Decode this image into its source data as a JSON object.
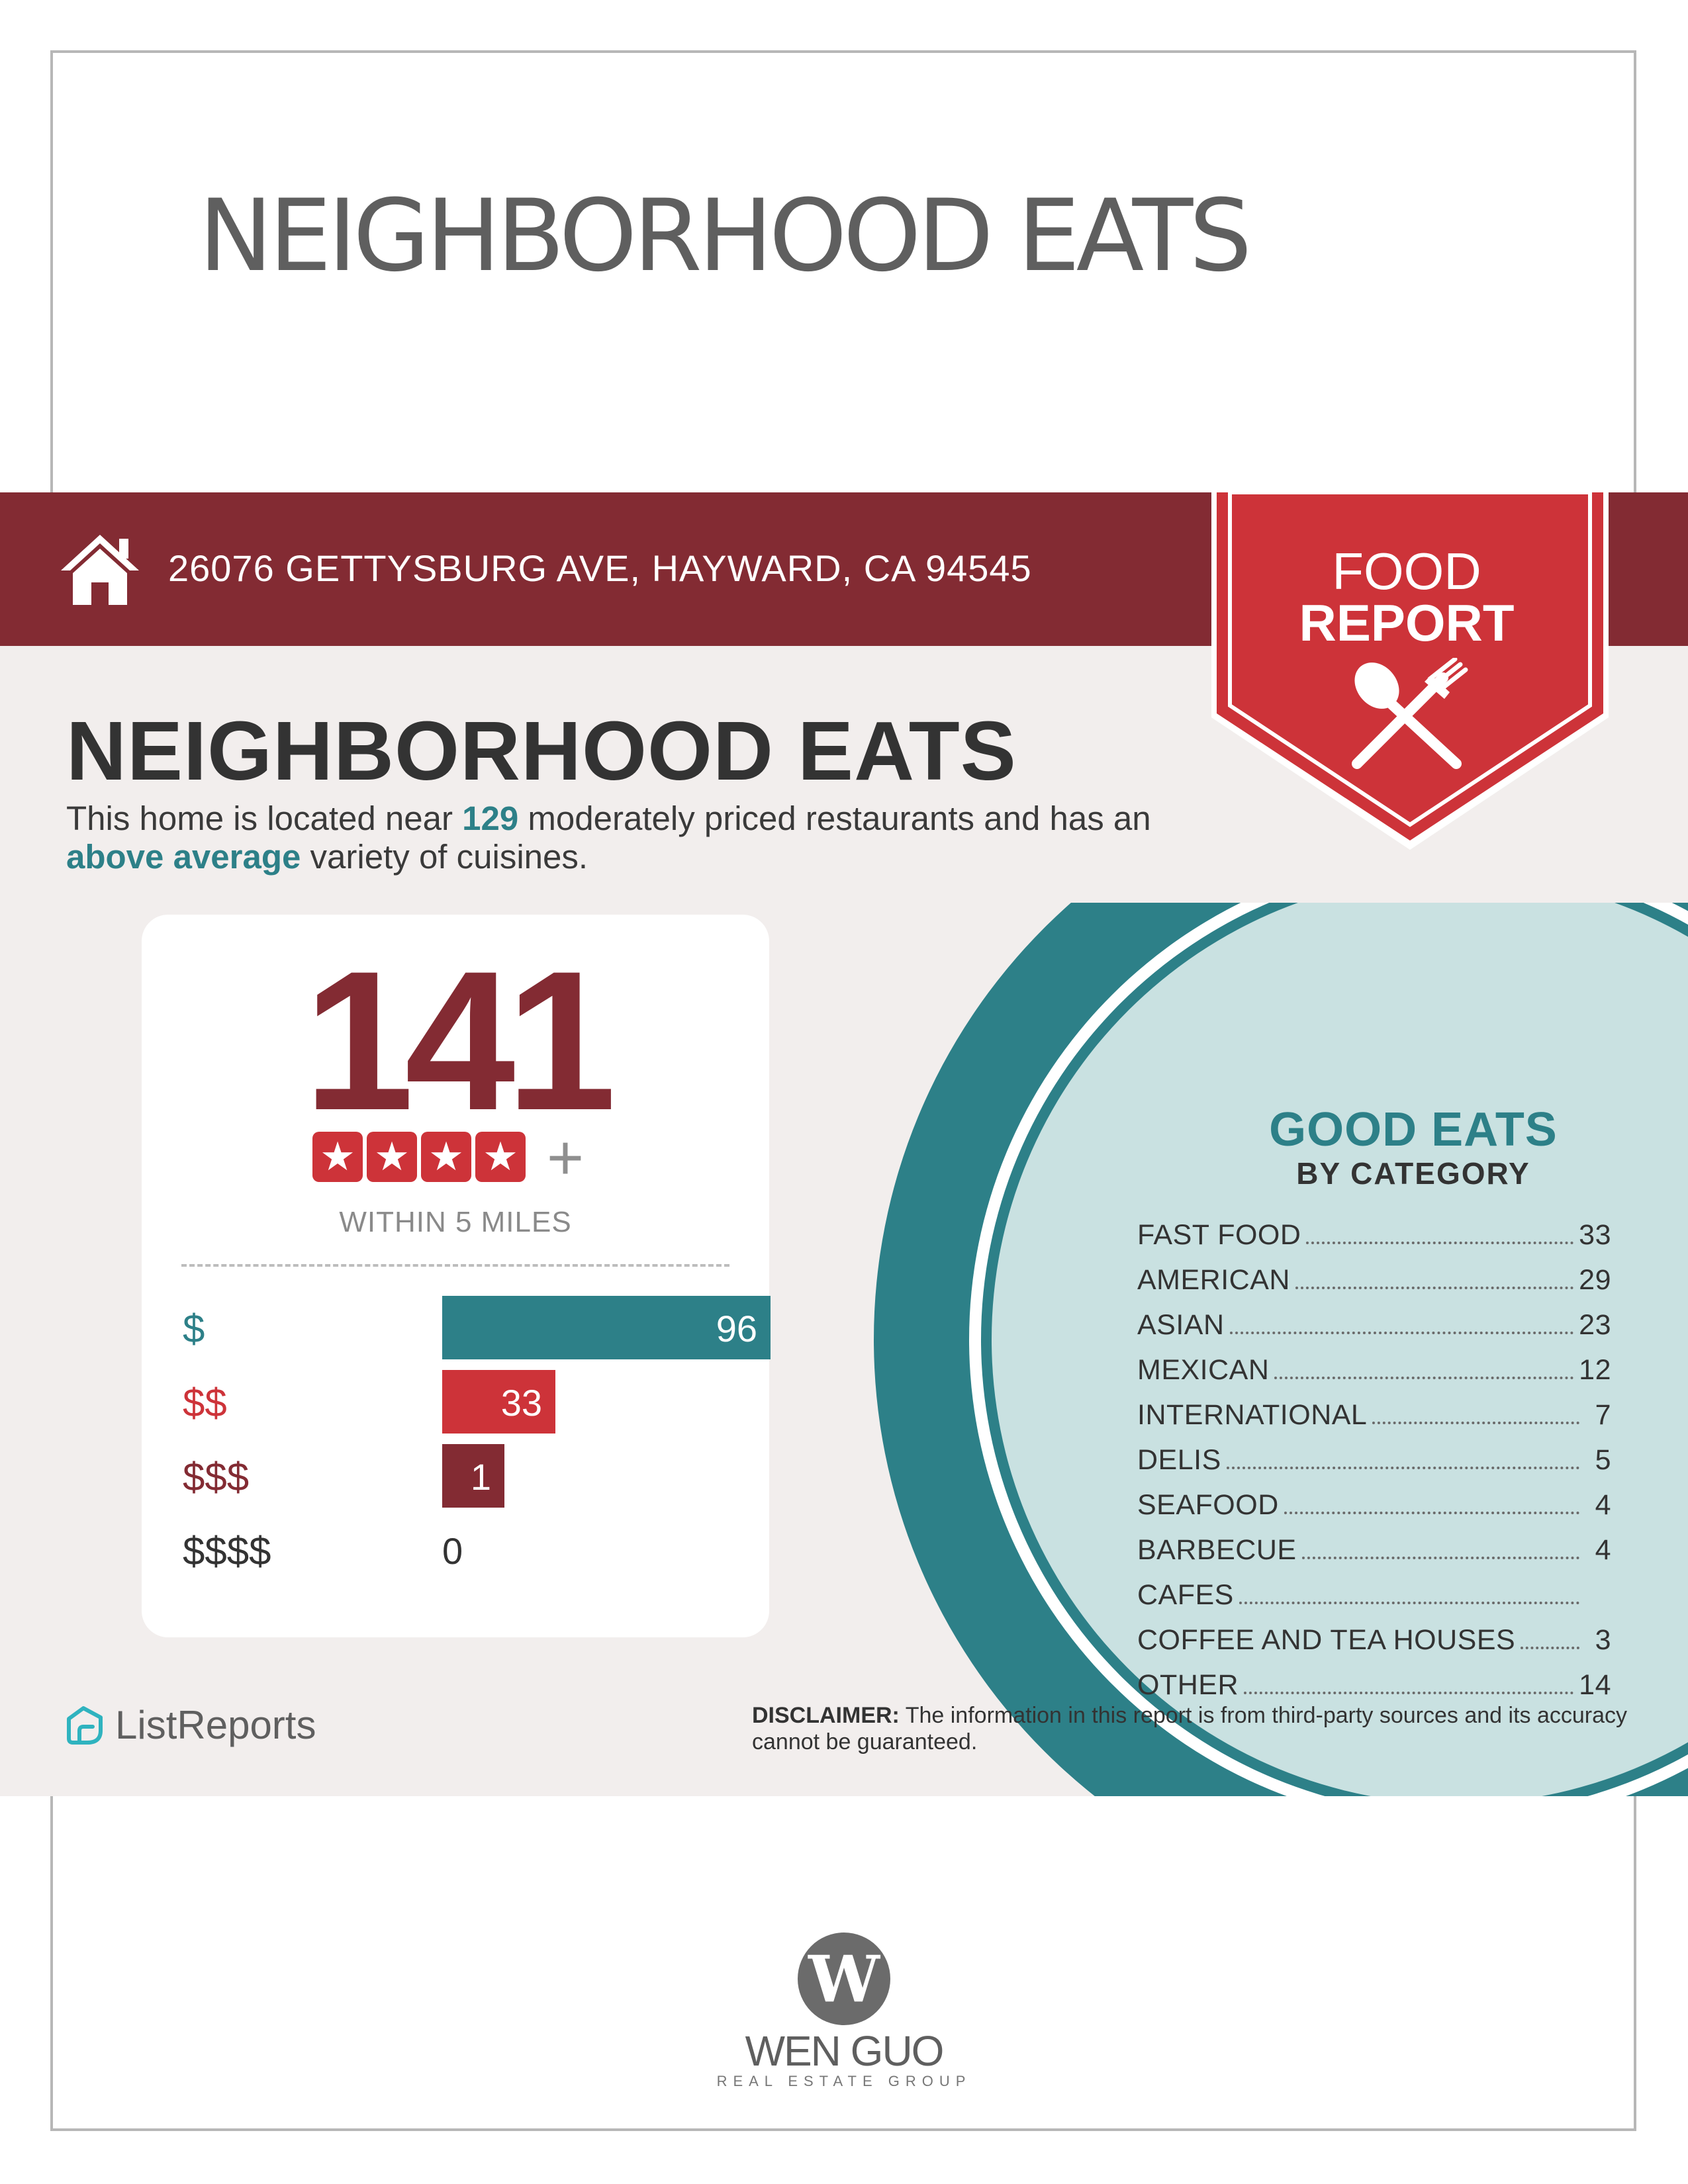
{
  "page": {
    "top_title": "NEIGHBORHOOD EATS"
  },
  "header": {
    "address": "26076 GETTYSBURG AVE, HAYWARD, CA 94545",
    "badge_line1": "FOOD",
    "badge_line2": "REPORT",
    "icons": [
      "home-icon",
      "spoon-fork-icon"
    ]
  },
  "main": {
    "heading": "NEIGHBORHOOD EATS",
    "intro_part1": "This home is located near ",
    "intro_count": "129",
    "intro_part2": " moderately priced restaurants and has an ",
    "intro_variety": "above average",
    "intro_part3": " variety of cuisines."
  },
  "stats": {
    "total": "141",
    "stars": 4,
    "stars_plus": "+",
    "within_label": "WITHIN 5 MILES",
    "price_levels": [
      {
        "label": "$",
        "value": 96,
        "value_text": "96",
        "color": "#2d8088"
      },
      {
        "label": "$$",
        "value": 33,
        "value_text": "33",
        "color": "#cd3339"
      },
      {
        "label": "$$$",
        "value": 1,
        "value_text": "1",
        "color": "#832b33"
      },
      {
        "label": "$$$$",
        "value": 0,
        "value_text": "0",
        "color": "#333333"
      }
    ]
  },
  "good_eats": {
    "title": "GOOD EATS",
    "subtitle": "BY CATEGORY",
    "categories": [
      {
        "name": "FAST FOOD",
        "count": "33"
      },
      {
        "name": "AMERICAN",
        "count": "29"
      },
      {
        "name": "ASIAN",
        "count": "23"
      },
      {
        "name": "MEXICAN",
        "count": "12"
      },
      {
        "name": "INTERNATIONAL",
        "count": "7"
      },
      {
        "name": "DELIS",
        "count": "5"
      },
      {
        "name": "SEAFOOD",
        "count": "4"
      },
      {
        "name": "BARBECUE",
        "count": "4"
      },
      {
        "name": "CAFES",
        "count": ""
      },
      {
        "name": "COFFEE AND TEA HOUSES",
        "count": "3"
      },
      {
        "name": "OTHER",
        "count": "14"
      }
    ]
  },
  "footer": {
    "provider": "ListReports",
    "disclaimer_label": "DISCLAIMER:",
    "disclaimer_text": " The information in this report is from third-party sources and its accuracy cannot be guaranteed.",
    "brand_initial": "W",
    "brand_name": "WEN GUO",
    "brand_tagline": "REAL ESTATE GROUP"
  },
  "colors": {
    "maroon": "#832b33",
    "red": "#cd3339",
    "teal": "#2d8088",
    "light_teal": "#c8e0e0",
    "panel_bg": "#f2eeed"
  }
}
